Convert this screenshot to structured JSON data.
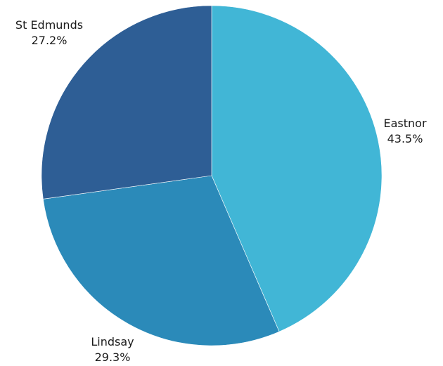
{
  "chart_data": {
    "type": "pie",
    "title": "",
    "slices": [
      {
        "label": "Eastnor",
        "value": 43.5,
        "value_text": "43.5%",
        "color": "#41B6D6"
      },
      {
        "label": "Lindsay",
        "value": 29.3,
        "value_text": "29.3%",
        "color": "#2B8AB9"
      },
      {
        "label": "St Edmunds",
        "value": 27.2,
        "value_text": "27.2%",
        "color": "#2E5E95"
      }
    ],
    "start_angle": "12 o'clock",
    "direction": "clockwise",
    "legend": "none"
  }
}
